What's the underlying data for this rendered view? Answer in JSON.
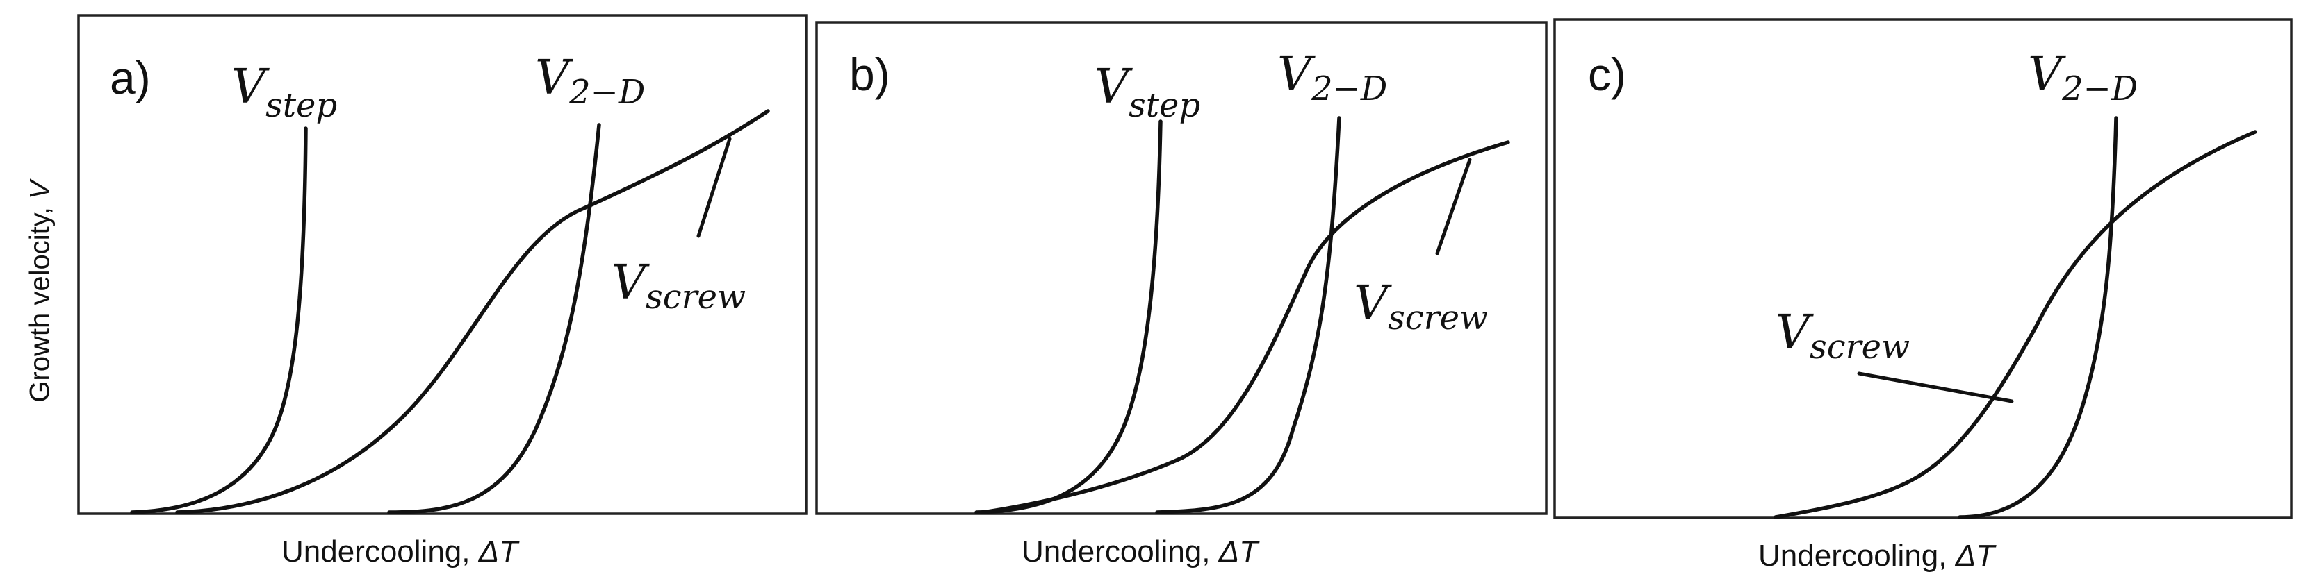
{
  "figure": {
    "y_axis_label": "Growth velocity,",
    "y_axis_var": "V",
    "x_axis_label": "Undercooling,",
    "x_axis_var": "ΔT",
    "panels": [
      {
        "id": "a",
        "letter": "a)",
        "curves": [
          {
            "name": "step",
            "label": "V",
            "sub": "step"
          },
          {
            "name": "2d",
            "label": "V",
            "sub": "2−D"
          },
          {
            "name": "screw",
            "label": "V",
            "sub": "screw"
          }
        ]
      },
      {
        "id": "b",
        "letter": "b)",
        "curves": [
          {
            "name": "step",
            "label": "V",
            "sub": "step"
          },
          {
            "name": "2d",
            "label": "V",
            "sub": "2−D"
          },
          {
            "name": "screw",
            "label": "V",
            "sub": "screw"
          }
        ]
      },
      {
        "id": "c",
        "letter": "c)",
        "curves": [
          {
            "name": "2d",
            "label": "V",
            "sub": "2−D"
          },
          {
            "name": "screw",
            "label": "V",
            "sub": "screw"
          }
        ]
      }
    ]
  }
}
